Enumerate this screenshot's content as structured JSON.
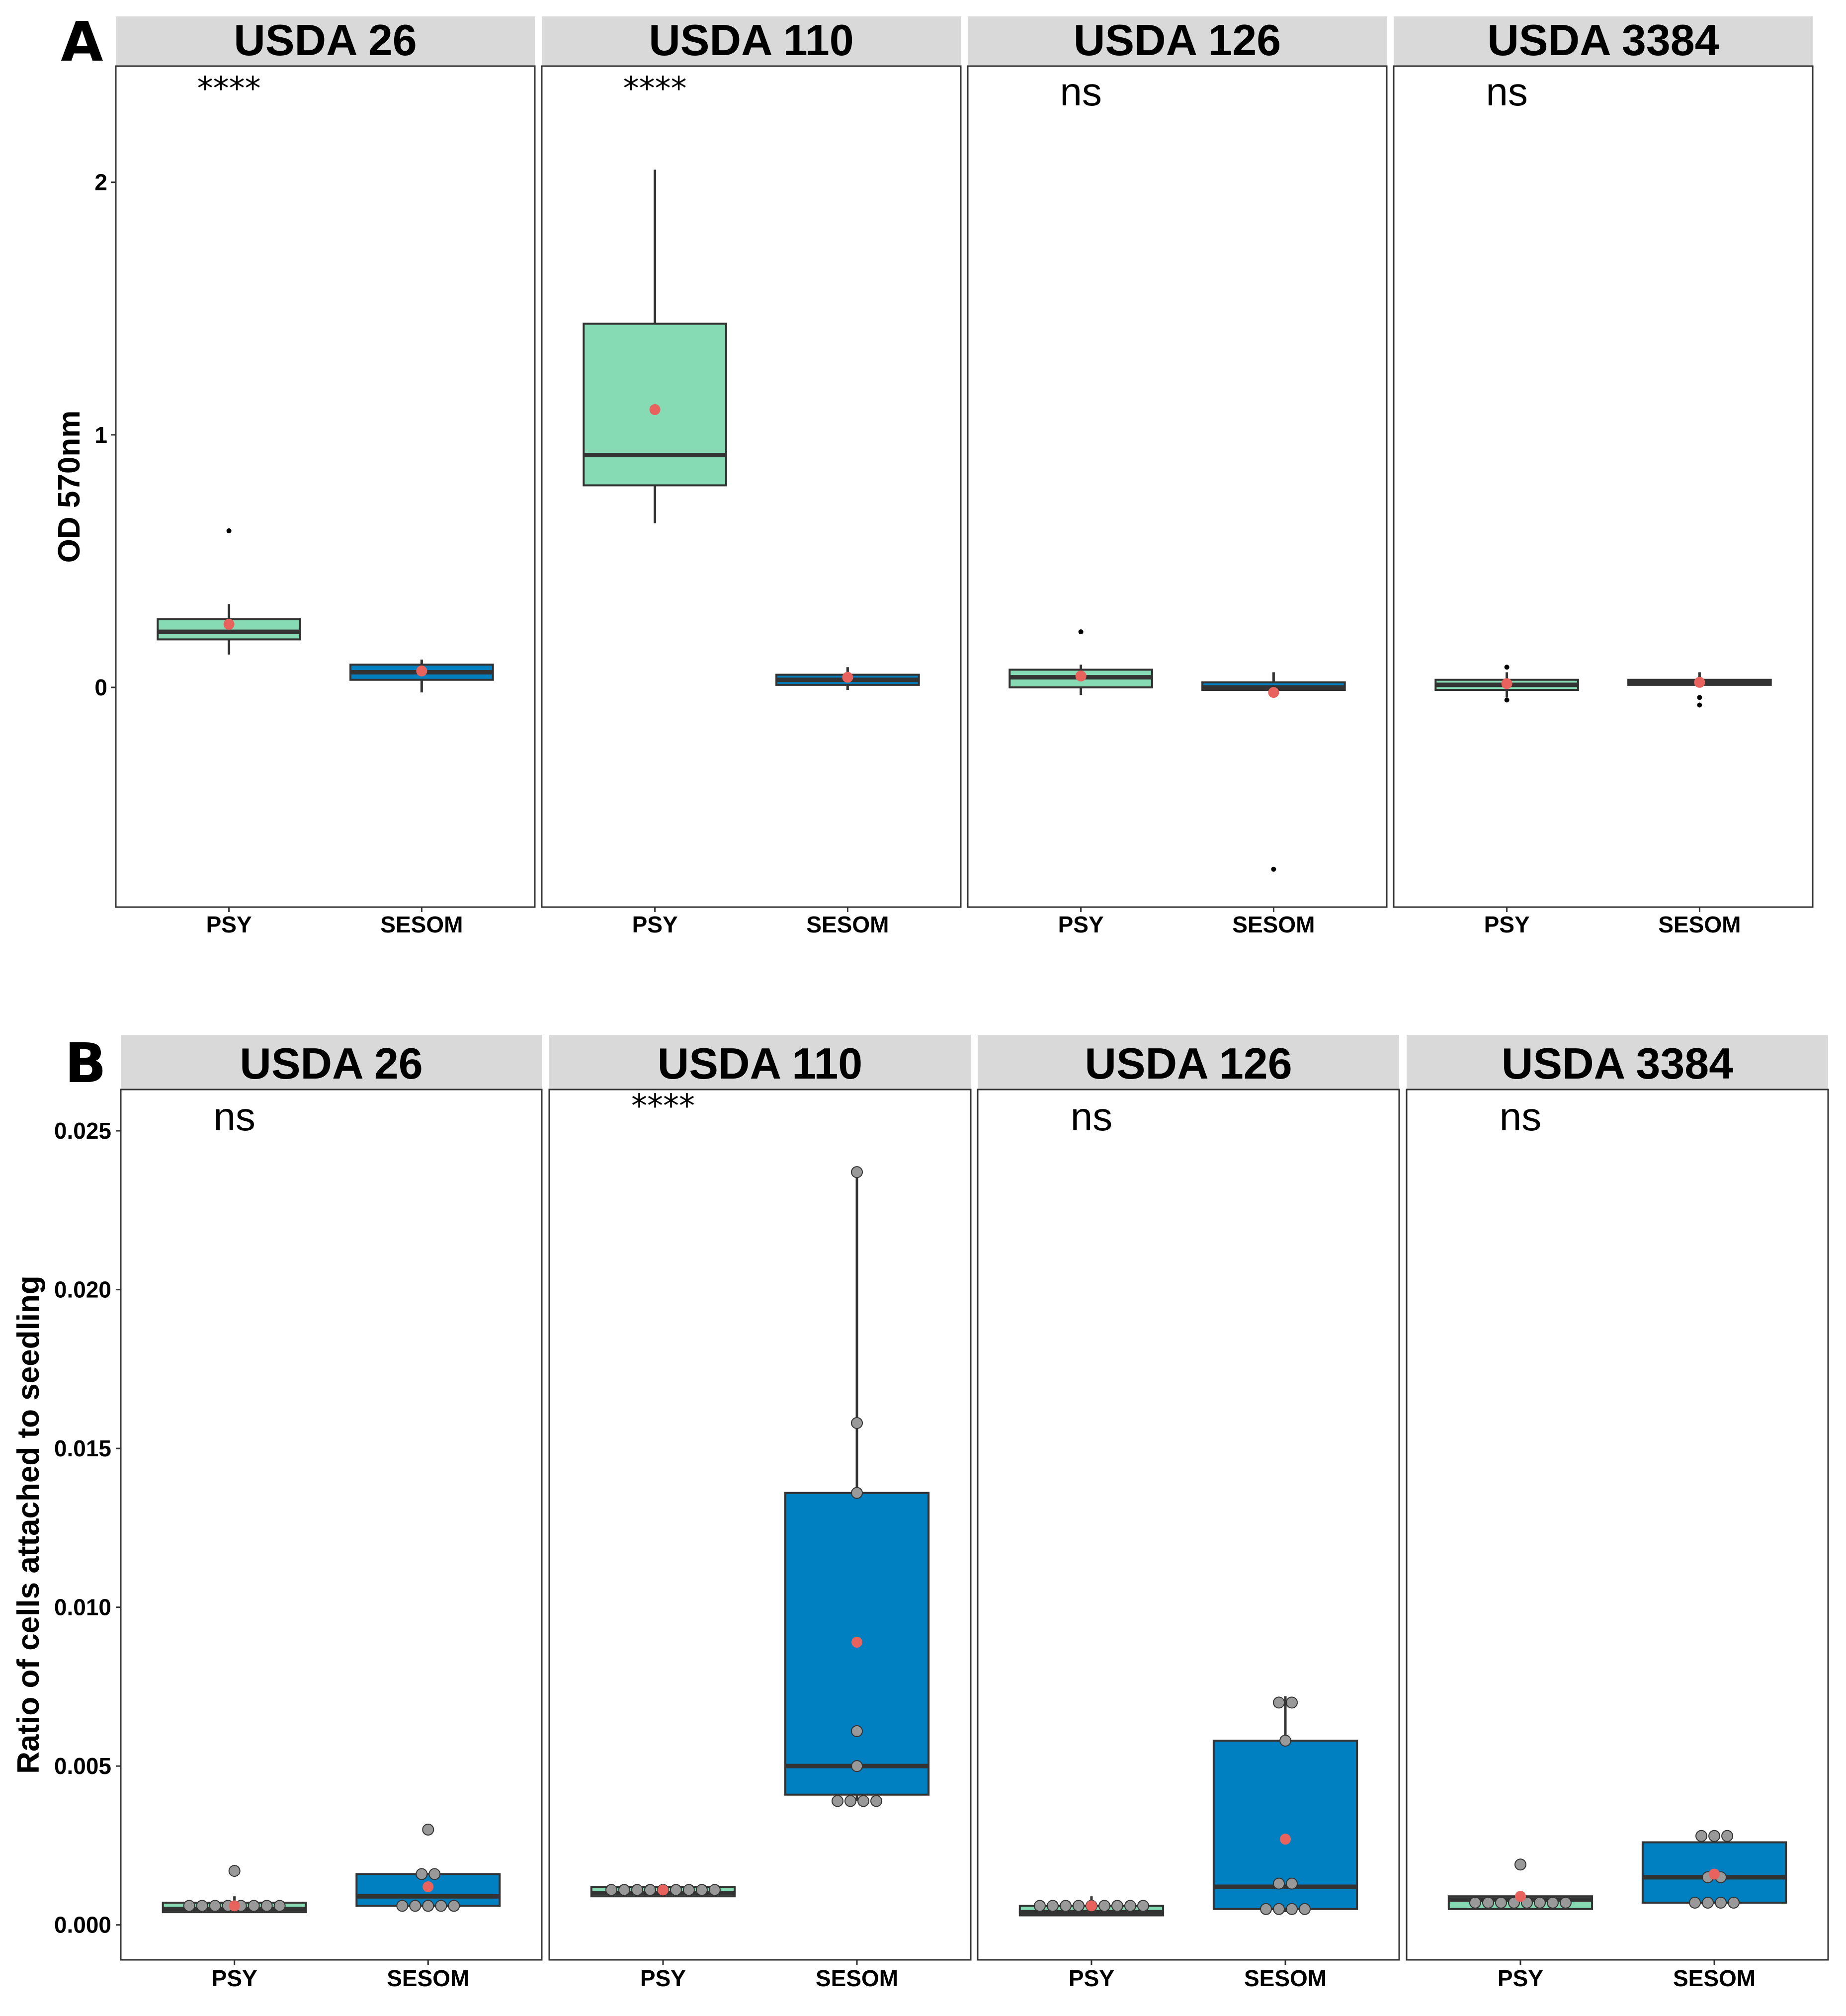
{
  "chart_data": [
    {
      "panel_label": "A",
      "type": "boxplot",
      "ylabel": "OD 570nm",
      "yticks": [
        {
          "v": 0,
          "label": "0"
        },
        {
          "v": 1,
          "label": "1"
        },
        {
          "v": 2,
          "label": "2"
        }
      ],
      "ylim": [
        -0.87,
        2.46
      ],
      "show_points": false,
      "colors": {
        "PSY": "#86DBB4",
        "SESOM": "#0080C0",
        "mean": "#E8635E",
        "outlier": "#000000"
      },
      "facets": [
        {
          "title": "USDA 26",
          "significance": "****",
          "groups": [
            {
              "label": "PSY",
              "q1": 0.19,
              "median": 0.22,
              "q3": 0.27,
              "wlow": 0.13,
              "whigh": 0.33,
              "mean": 0.25,
              "outliers": [
                0.62
              ]
            },
            {
              "label": "SESOM",
              "q1": 0.03,
              "median": 0.06,
              "q3": 0.09,
              "wlow": -0.02,
              "whigh": 0.11,
              "mean": 0.065,
              "outliers": []
            }
          ]
        },
        {
          "title": "USDA 110",
          "significance": "****",
          "groups": [
            {
              "label": "PSY",
              "q1": 0.8,
              "median": 0.92,
              "q3": 1.44,
              "wlow": 0.65,
              "whigh": 2.05,
              "mean": 1.1,
              "outliers": []
            },
            {
              "label": "SESOM",
              "q1": 0.01,
              "median": 0.03,
              "q3": 0.05,
              "wlow": -0.01,
              "whigh": 0.08,
              "mean": 0.04,
              "outliers": []
            }
          ]
        },
        {
          "title": "USDA 126",
          "significance": "ns",
          "groups": [
            {
              "label": "PSY",
              "q1": 0.0,
              "median": 0.04,
              "q3": 0.07,
              "wlow": -0.03,
              "whigh": 0.09,
              "mean": 0.045,
              "outliers": [
                0.22
              ]
            },
            {
              "label": "SESOM",
              "q1": -0.01,
              "median": 0.0,
              "q3": 0.02,
              "wlow": -0.01,
              "whigh": 0.06,
              "mean": -0.02,
              "outliers": [
                -0.72
              ]
            }
          ]
        },
        {
          "title": "USDA 3384",
          "significance": "ns",
          "groups": [
            {
              "label": "PSY",
              "q1": -0.01,
              "median": 0.01,
              "q3": 0.03,
              "wlow": -0.04,
              "whigh": 0.06,
              "mean": 0.015,
              "outliers": [
                -0.05,
                0.08
              ]
            },
            {
              "label": "SESOM",
              "q1": 0.01,
              "median": 0.02,
              "q3": 0.03,
              "wlow": 0.0,
              "whigh": 0.06,
              "mean": 0.02,
              "outliers": [
                -0.04,
                -0.07
              ]
            }
          ]
        }
      ]
    },
    {
      "panel_label": "B",
      "type": "boxplot",
      "ylabel": "Ratio of cells attached to seedling",
      "yticks": [
        {
          "v": 0,
          "label": "0.000"
        },
        {
          "v": 0.005,
          "label": "0.005"
        },
        {
          "v": 0.01,
          "label": "0.010"
        },
        {
          "v": 0.015,
          "label": "0.015"
        },
        {
          "v": 0.02,
          "label": "0.020"
        },
        {
          "v": 0.025,
          "label": "0.025"
        }
      ],
      "ylim": [
        -0.0011,
        0.0263
      ],
      "show_points": true,
      "colors": {
        "PSY": "#86DBB4",
        "SESOM": "#0080C0",
        "mean": "#E8635E",
        "point": "#999999"
      },
      "facets": [
        {
          "title": "USDA 26",
          "significance": "ns",
          "groups": [
            {
              "label": "PSY",
              "q1": 0.0004,
              "median": 0.0005,
              "q3": 0.0007,
              "wlow": 0.0004,
              "whigh": 0.0009,
              "mean": 0.0006,
              "points": [
                0.0006,
                0.0006,
                0.0006,
                0.0006,
                0.0006,
                0.0006,
                0.0006,
                0.0006,
                0.0017
              ]
            },
            {
              "label": "SESOM",
              "q1": 0.0006,
              "median": 0.0009,
              "q3": 0.0016,
              "wlow": 0.0006,
              "whigh": 0.0016,
              "mean": 0.0012,
              "points": [
                0.0006,
                0.0006,
                0.0006,
                0.0006,
                0.0006,
                0.0016,
                0.0016,
                0.003
              ]
            }
          ]
        },
        {
          "title": "USDA 110",
          "significance": "****",
          "groups": [
            {
              "label": "PSY",
              "q1": 0.0009,
              "median": 0.001,
              "q3": 0.0012,
              "wlow": 0.0009,
              "whigh": 0.0012,
              "mean": 0.0011,
              "points": [
                0.0011,
                0.0011,
                0.0011,
                0.0011,
                0.0011,
                0.0011,
                0.0011,
                0.0011,
                0.0011
              ]
            },
            {
              "label": "SESOM",
              "q1": 0.0041,
              "median": 0.005,
              "q3": 0.0136,
              "wlow": 0.0039,
              "whigh": 0.0237,
              "mean": 0.0089,
              "points": [
                0.0039,
                0.0039,
                0.0039,
                0.0039,
                0.005,
                0.0061,
                0.0136,
                0.0158,
                0.0237
              ]
            }
          ]
        },
        {
          "title": "USDA 126",
          "significance": "ns",
          "groups": [
            {
              "label": "PSY",
              "q1": 0.0003,
              "median": 0.0004,
              "q3": 0.0006,
              "wlow": 0.0003,
              "whigh": 0.0009,
              "mean": 0.0006,
              "points": [
                0.0006,
                0.0006,
                0.0006,
                0.0006,
                0.0006,
                0.0006,
                0.0006,
                0.0006,
                0.0006
              ]
            },
            {
              "label": "SESOM",
              "q1": 0.0005,
              "median": 0.0012,
              "q3": 0.0058,
              "wlow": 0.0004,
              "whigh": 0.0072,
              "mean": 0.0027,
              "points": [
                0.0005,
                0.0005,
                0.0005,
                0.0005,
                0.0013,
                0.0013,
                0.0058,
                0.007,
                0.007
              ]
            }
          ]
        },
        {
          "title": "USDA 3384",
          "significance": "ns",
          "groups": [
            {
              "label": "PSY",
              "q1": 0.0005,
              "median": 0.0008,
              "q3": 0.0009,
              "wlow": 0.0005,
              "whigh": 0.0009,
              "mean": 0.0009,
              "points": [
                0.0007,
                0.0007,
                0.0007,
                0.0007,
                0.0007,
                0.0007,
                0.0007,
                0.0007,
                0.0019
              ]
            },
            {
              "label": "SESOM",
              "q1": 0.0007,
              "median": 0.0015,
              "q3": 0.0026,
              "wlow": 0.0007,
              "whigh": 0.0028,
              "mean": 0.0016,
              "points": [
                0.0007,
                0.0007,
                0.0007,
                0.0007,
                0.0015,
                0.0015,
                0.0028,
                0.0028,
                0.0028
              ]
            }
          ]
        }
      ]
    }
  ]
}
